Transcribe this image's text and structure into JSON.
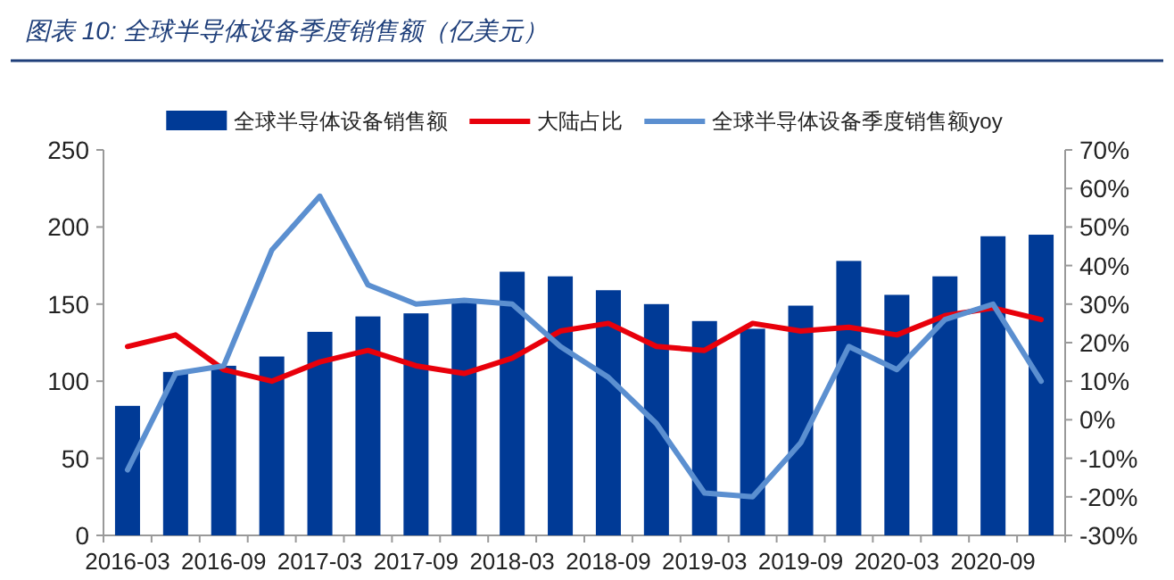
{
  "chart_data": {
    "type": "bar",
    "title": "图表 10:  全球半导体设备季度销售额（亿美元）",
    "categories": [
      "2016-03",
      null,
      "2016-09",
      null,
      "2017-03",
      null,
      "2017-09",
      null,
      "2018-03",
      null,
      "2018-09",
      null,
      "2019-03",
      null,
      "2019-09",
      null,
      "2020-03",
      null,
      "2020-09",
      null
    ],
    "series": [
      {
        "name": "全球半导体设备销售额",
        "color": "#003a96",
        "values": [
          84,
          106,
          110,
          116,
          132,
          142,
          144,
          151,
          171,
          168,
          159,
          150,
          139,
          134,
          149,
          178,
          156,
          168,
          194,
          195
        ]
      },
      {
        "name": "大陆占比",
        "type": "line",
        "axis": "y2",
        "color": "#e8000b",
        "values": [
          19,
          22,
          13,
          10,
          15,
          18,
          14,
          12,
          16,
          23,
          25,
          19,
          18,
          25,
          23,
          24,
          22,
          27,
          29,
          26
        ]
      },
      {
        "name": "全球半导体设备季度销售额yoy",
        "type": "line",
        "axis": "y2",
        "color": "#5b8fd0",
        "values": [
          -13,
          12,
          14,
          44,
          58,
          35,
          30,
          31,
          30,
          19,
          11,
          -1,
          -19,
          -20,
          -6,
          19,
          13,
          26,
          30,
          10
        ]
      }
    ],
    "ylim": [
      0,
      250
    ],
    "yticks": [
      0,
      50,
      100,
      150,
      200,
      250
    ],
    "y2lim": [
      -30,
      70
    ],
    "y2ticks": [
      {
        "value": -30,
        "label": "-30%"
      },
      {
        "value": -20,
        "label": "-20%"
      },
      {
        "value": -10,
        "label": "-10%"
      },
      {
        "value": 0,
        "label": "0%"
      },
      {
        "value": 10,
        "label": "10%"
      },
      {
        "value": 20,
        "label": "20%"
      },
      {
        "value": 30,
        "label": "30%"
      },
      {
        "value": 40,
        "label": "40%"
      },
      {
        "value": 50,
        "label": "50%"
      },
      {
        "value": 60,
        "label": "60%"
      },
      {
        "value": 70,
        "label": "70%"
      }
    ],
    "legend": "top",
    "grid": false
  }
}
